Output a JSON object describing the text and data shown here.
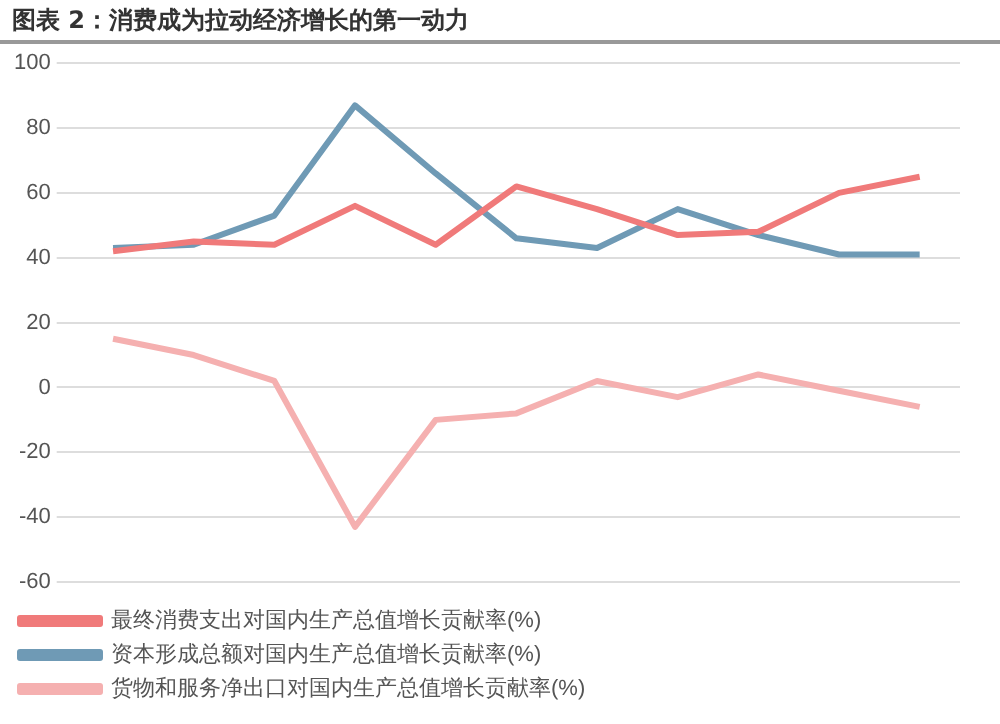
{
  "chart_data": {
    "type": "line",
    "title": "图表 2：消费成为拉动经济增长的第一动力",
    "categories": [
      null,
      null,
      null,
      null,
      null,
      null,
      null,
      null,
      null,
      null,
      null
    ],
    "series": [
      {
        "name": "最终消费支出对国内生产总值增长贡献率(%)",
        "color": "#f07a7a",
        "values": [
          42,
          45,
          44,
          56,
          44,
          62,
          55,
          47,
          48,
          60,
          65
        ]
      },
      {
        "name": "资本形成总额对国内生产总值增长贡献率(%)",
        "color": "#6f9ab5",
        "values": [
          43,
          44,
          53,
          87,
          66,
          46,
          43,
          55,
          47,
          41,
          41
        ]
      },
      {
        "name": "货物和服务净出口对国内生产总值增长贡献率(%)",
        "color": "#f5b0b0",
        "values": [
          15,
          10,
          2,
          -43,
          -10,
          -8,
          2,
          -3,
          4,
          -1,
          -6
        ]
      }
    ],
    "ylim": [
      -60,
      100
    ],
    "yticks": [
      -60,
      -40,
      -20,
      0,
      20,
      40,
      60,
      80,
      100
    ],
    "grid": "y",
    "legend": "bottom",
    "marker": "none",
    "line_style": "solid",
    "tick_labels": "y"
  }
}
